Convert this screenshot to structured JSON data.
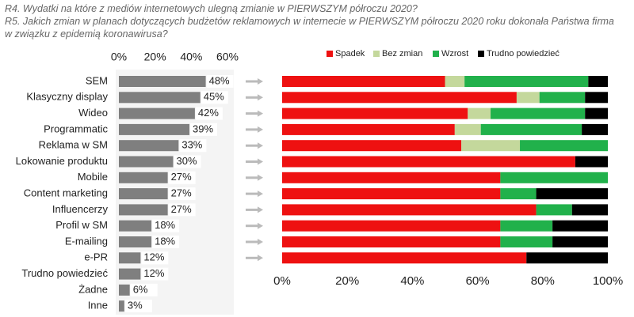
{
  "chart_data": [
    {
      "type": "hbar",
      "title": "R4. Wydatki na które z mediów internetowych ulegną zmianie w PIERWSZYM półroczu 2020?",
      "categories": [
        "SEM",
        "Klasyczny display",
        "Wideo",
        "Programmatic",
        "Reklama w SM",
        "Lokowanie produktu",
        "Mobile",
        "Content marketing",
        "Influencerzy",
        "Profil w SM",
        "E-mailing",
        "e-PR",
        "Trudno powiedzieć",
        "Żadne",
        "Inne"
      ],
      "values": [
        48,
        45,
        42,
        39,
        33,
        30,
        27,
        27,
        27,
        18,
        18,
        12,
        12,
        6,
        3
      ],
      "value_labels": [
        "48%",
        "45%",
        "42%",
        "39%",
        "33%",
        "30%",
        "27%",
        "27%",
        "27%",
        "18%",
        "18%",
        "12%",
        "12%",
        "6%",
        "3%"
      ],
      "color": "#7f7f7f",
      "xlim": [
        0,
        60
      ],
      "xticks": [
        {
          "value": 0,
          "label": "0%"
        },
        {
          "value": 20,
          "label": "20%"
        },
        {
          "value": 40,
          "label": "40%"
        },
        {
          "value": 60,
          "label": "60%"
        }
      ]
    },
    {
      "type": "stacked_hbar",
      "title": "R5. Jakich zmian w planach dotyczących budżetów reklamowych w internecie w PIERWSZYM półroczu 2020 roku dokonała Państwa firma w związku z epidemią koronawirusa?",
      "series": [
        {
          "name": "Spadek",
          "color": "#ee1111",
          "values": [
            50,
            72,
            57,
            53,
            55,
            90,
            67,
            67,
            78,
            67,
            67,
            75
          ]
        },
        {
          "name": "Bez zmian",
          "color": "#c4d89c",
          "values": [
            6,
            7,
            7,
            8,
            18,
            0,
            0,
            0,
            0,
            0,
            0,
            0
          ]
        },
        {
          "name": "Wzrost",
          "color": "#21b14b",
          "values": [
            38,
            14,
            29,
            31,
            27,
            0,
            33,
            11,
            11,
            16,
            16,
            0
          ]
        },
        {
          "name": "Trudno powiedzieć",
          "color": "#000000",
          "values": [
            6,
            7,
            7,
            8,
            0,
            10,
            0,
            22,
            11,
            17,
            17,
            25
          ]
        }
      ],
      "xlim": [
        0,
        100
      ],
      "xticks": [
        {
          "value": 0,
          "label": "0%"
        },
        {
          "value": 20,
          "label": "20%"
        },
        {
          "value": 40,
          "label": "40%"
        },
        {
          "value": 60,
          "label": "60%"
        },
        {
          "value": 80,
          "label": "80%"
        },
        {
          "value": 100,
          "label": "100%"
        }
      ]
    }
  ]
}
